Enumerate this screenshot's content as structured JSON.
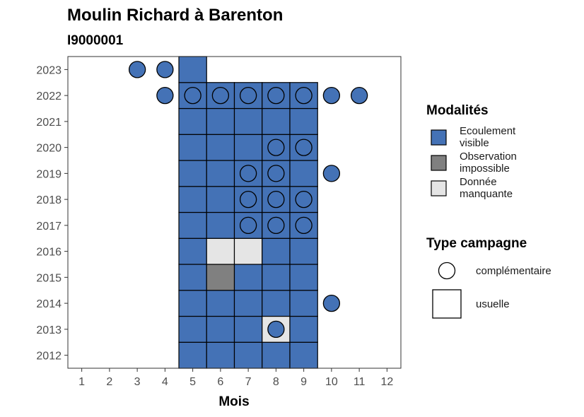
{
  "chart_data": {
    "type": "heatmap",
    "title": "Moulin Richard à Barenton",
    "subtitle": "I9000001",
    "xlabel": "Mois",
    "ylabel": "",
    "x_ticks": [
      1,
      2,
      3,
      4,
      5,
      6,
      7,
      8,
      9,
      10,
      11,
      12
    ],
    "y_ticks": [
      2012,
      2013,
      2014,
      2015,
      2016,
      2017,
      2018,
      2019,
      2020,
      2021,
      2022,
      2023
    ],
    "xlim": [
      0.5,
      12.5
    ],
    "ylim": [
      2011.5,
      2023.5
    ],
    "grid": false,
    "legend_placement": "right",
    "colors": {
      "ecoulement_visible": "#4472b6",
      "observation_impossible": "#808080",
      "donnee_manquante": "#e5e5e5"
    },
    "legend_modalites": {
      "title": "Modalités",
      "items": [
        {
          "key": "ecoulement_visible",
          "lines": [
            "Ecoulement",
            "visible"
          ]
        },
        {
          "key": "observation_impossible",
          "lines": [
            "Observation",
            "impossible"
          ]
        },
        {
          "key": "donnee_manquante",
          "lines": [
            "Donnée",
            "manquante"
          ]
        }
      ]
    },
    "legend_type": {
      "title": "Type campagne",
      "items": [
        {
          "shape": "circle",
          "label": "complémentaire"
        },
        {
          "shape": "square",
          "label": "usuelle"
        }
      ]
    },
    "usuelle": [
      {
        "year": 2012,
        "month": 5,
        "modalite": "ecoulement_visible"
      },
      {
        "year": 2012,
        "month": 6,
        "modalite": "ecoulement_visible"
      },
      {
        "year": 2012,
        "month": 7,
        "modalite": "ecoulement_visible"
      },
      {
        "year": 2012,
        "month": 8,
        "modalite": "ecoulement_visible"
      },
      {
        "year": 2012,
        "month": 9,
        "modalite": "ecoulement_visible"
      },
      {
        "year": 2013,
        "month": 5,
        "modalite": "ecoulement_visible"
      },
      {
        "year": 2013,
        "month": 6,
        "modalite": "ecoulement_visible"
      },
      {
        "year": 2013,
        "month": 7,
        "modalite": "ecoulement_visible"
      },
      {
        "year": 2013,
        "month": 8,
        "modalite": "donnee_manquante"
      },
      {
        "year": 2013,
        "month": 9,
        "modalite": "ecoulement_visible"
      },
      {
        "year": 2014,
        "month": 5,
        "modalite": "ecoulement_visible"
      },
      {
        "year": 2014,
        "month": 6,
        "modalite": "ecoulement_visible"
      },
      {
        "year": 2014,
        "month": 7,
        "modalite": "ecoulement_visible"
      },
      {
        "year": 2014,
        "month": 8,
        "modalite": "ecoulement_visible"
      },
      {
        "year": 2014,
        "month": 9,
        "modalite": "ecoulement_visible"
      },
      {
        "year": 2015,
        "month": 5,
        "modalite": "ecoulement_visible"
      },
      {
        "year": 2015,
        "month": 6,
        "modalite": "observation_impossible"
      },
      {
        "year": 2015,
        "month": 7,
        "modalite": "ecoulement_visible"
      },
      {
        "year": 2015,
        "month": 8,
        "modalite": "ecoulement_visible"
      },
      {
        "year": 2015,
        "month": 9,
        "modalite": "ecoulement_visible"
      },
      {
        "year": 2016,
        "month": 5,
        "modalite": "ecoulement_visible"
      },
      {
        "year": 2016,
        "month": 6,
        "modalite": "donnee_manquante"
      },
      {
        "year": 2016,
        "month": 7,
        "modalite": "donnee_manquante"
      },
      {
        "year": 2016,
        "month": 8,
        "modalite": "ecoulement_visible"
      },
      {
        "year": 2016,
        "month": 9,
        "modalite": "ecoulement_visible"
      },
      {
        "year": 2017,
        "month": 5,
        "modalite": "ecoulement_visible"
      },
      {
        "year": 2017,
        "month": 6,
        "modalite": "ecoulement_visible"
      },
      {
        "year": 2017,
        "month": 7,
        "modalite": "ecoulement_visible"
      },
      {
        "year": 2017,
        "month": 8,
        "modalite": "ecoulement_visible"
      },
      {
        "year": 2017,
        "month": 9,
        "modalite": "ecoulement_visible"
      },
      {
        "year": 2018,
        "month": 5,
        "modalite": "ecoulement_visible"
      },
      {
        "year": 2018,
        "month": 6,
        "modalite": "ecoulement_visible"
      },
      {
        "year": 2018,
        "month": 7,
        "modalite": "ecoulement_visible"
      },
      {
        "year": 2018,
        "month": 8,
        "modalite": "ecoulement_visible"
      },
      {
        "year": 2018,
        "month": 9,
        "modalite": "ecoulement_visible"
      },
      {
        "year": 2019,
        "month": 5,
        "modalite": "ecoulement_visible"
      },
      {
        "year": 2019,
        "month": 6,
        "modalite": "ecoulement_visible"
      },
      {
        "year": 2019,
        "month": 7,
        "modalite": "ecoulement_visible"
      },
      {
        "year": 2019,
        "month": 8,
        "modalite": "ecoulement_visible"
      },
      {
        "year": 2019,
        "month": 9,
        "modalite": "ecoulement_visible"
      },
      {
        "year": 2020,
        "month": 5,
        "modalite": "ecoulement_visible"
      },
      {
        "year": 2020,
        "month": 6,
        "modalite": "ecoulement_visible"
      },
      {
        "year": 2020,
        "month": 7,
        "modalite": "ecoulement_visible"
      },
      {
        "year": 2020,
        "month": 8,
        "modalite": "ecoulement_visible"
      },
      {
        "year": 2020,
        "month": 9,
        "modalite": "ecoulement_visible"
      },
      {
        "year": 2021,
        "month": 5,
        "modalite": "ecoulement_visible"
      },
      {
        "year": 2021,
        "month": 6,
        "modalite": "ecoulement_visible"
      },
      {
        "year": 2021,
        "month": 7,
        "modalite": "ecoulement_visible"
      },
      {
        "year": 2021,
        "month": 8,
        "modalite": "ecoulement_visible"
      },
      {
        "year": 2021,
        "month": 9,
        "modalite": "ecoulement_visible"
      },
      {
        "year": 2022,
        "month": 5,
        "modalite": "ecoulement_visible"
      },
      {
        "year": 2022,
        "month": 6,
        "modalite": "ecoulement_visible"
      },
      {
        "year": 2022,
        "month": 7,
        "modalite": "ecoulement_visible"
      },
      {
        "year": 2022,
        "month": 8,
        "modalite": "ecoulement_visible"
      },
      {
        "year": 2022,
        "month": 9,
        "modalite": "ecoulement_visible"
      },
      {
        "year": 2023,
        "month": 5,
        "modalite": "ecoulement_visible"
      }
    ],
    "complementaire": [
      {
        "year": 2013,
        "month": 8,
        "modalite": "ecoulement_visible"
      },
      {
        "year": 2014,
        "month": 10,
        "modalite": "ecoulement_visible"
      },
      {
        "year": 2017,
        "month": 7,
        "modalite": "ecoulement_visible"
      },
      {
        "year": 2017,
        "month": 8,
        "modalite": "ecoulement_visible"
      },
      {
        "year": 2017,
        "month": 9,
        "modalite": "ecoulement_visible"
      },
      {
        "year": 2018,
        "month": 7,
        "modalite": "ecoulement_visible"
      },
      {
        "year": 2018,
        "month": 8,
        "modalite": "ecoulement_visible"
      },
      {
        "year": 2018,
        "month": 9,
        "modalite": "ecoulement_visible"
      },
      {
        "year": 2019,
        "month": 7,
        "modalite": "ecoulement_visible"
      },
      {
        "year": 2019,
        "month": 8,
        "modalite": "ecoulement_visible"
      },
      {
        "year": 2019,
        "month": 10,
        "modalite": "ecoulement_visible"
      },
      {
        "year": 2020,
        "month": 8,
        "modalite": "ecoulement_visible"
      },
      {
        "year": 2020,
        "month": 9,
        "modalite": "ecoulement_visible"
      },
      {
        "year": 2022,
        "month": 4,
        "modalite": "ecoulement_visible"
      },
      {
        "year": 2022,
        "month": 5,
        "modalite": "ecoulement_visible"
      },
      {
        "year": 2022,
        "month": 6,
        "modalite": "ecoulement_visible"
      },
      {
        "year": 2022,
        "month": 7,
        "modalite": "ecoulement_visible"
      },
      {
        "year": 2022,
        "month": 8,
        "modalite": "ecoulement_visible"
      },
      {
        "year": 2022,
        "month": 9,
        "modalite": "ecoulement_visible"
      },
      {
        "year": 2022,
        "month": 10,
        "modalite": "ecoulement_visible"
      },
      {
        "year": 2022,
        "month": 11,
        "modalite": "ecoulement_visible"
      },
      {
        "year": 2023,
        "month": 3,
        "modalite": "ecoulement_visible"
      },
      {
        "year": 2023,
        "month": 4,
        "modalite": "ecoulement_visible"
      }
    ]
  }
}
